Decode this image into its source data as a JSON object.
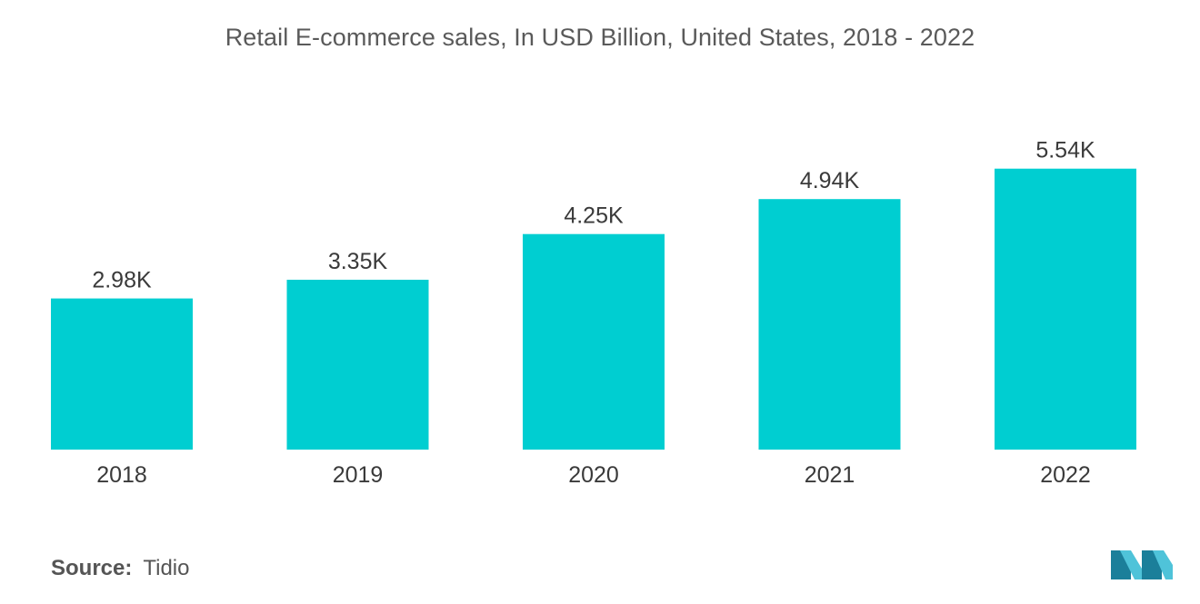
{
  "chart_data": {
    "type": "bar",
    "title": "Retail E-commerce sales, In USD Billion, United States, 2018 - 2022",
    "categories": [
      "2018",
      "2019",
      "2020",
      "2021",
      "2022"
    ],
    "values": [
      2980,
      3350,
      4250,
      4940,
      5540
    ],
    "data_labels": [
      "2.98K",
      "3.35K",
      "4.25K",
      "4.94K",
      "5.54K"
    ],
    "ylim": [
      0,
      6000
    ],
    "grid": false,
    "legend": "none",
    "bar_color": "#00CED1"
  },
  "source": {
    "label": "Source:",
    "value": "Tidio"
  },
  "logo": {
    "icon": "mordor-intelligence-logo",
    "colors": [
      "#1b7f9a",
      "#4fc3d9"
    ]
  }
}
